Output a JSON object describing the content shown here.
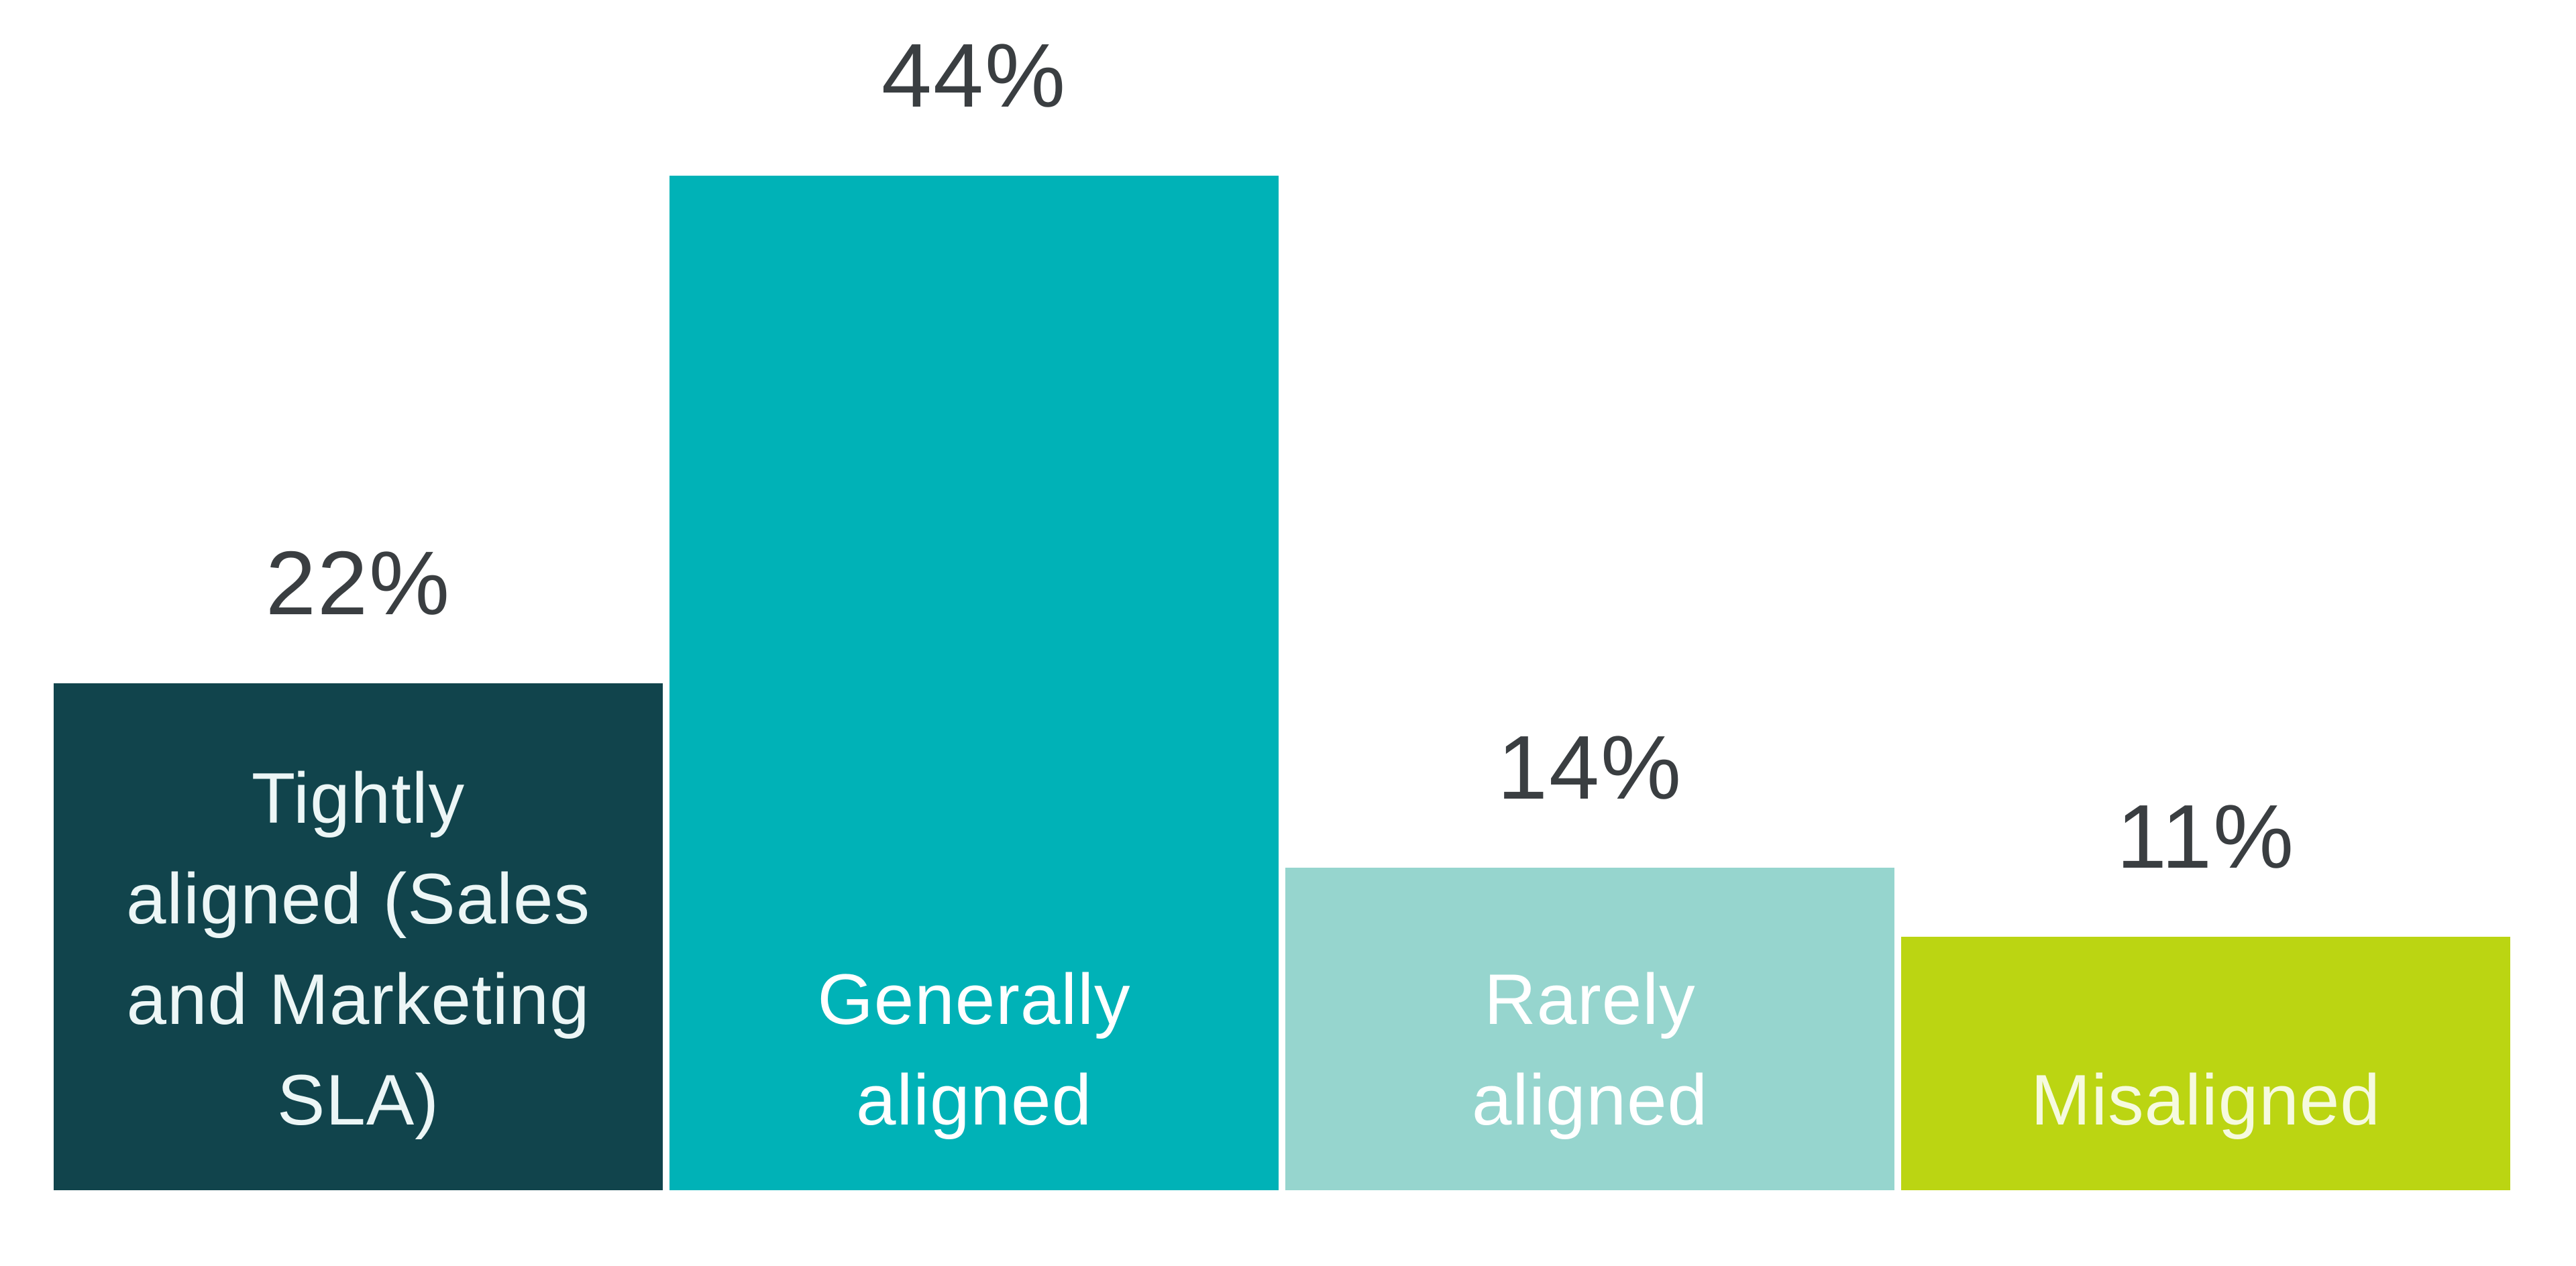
{
  "chart_data": {
    "type": "bar",
    "title": "",
    "xlabel": "",
    "ylabel": "",
    "unit": "%",
    "ylim": [
      0,
      44
    ],
    "grid": false,
    "legend": false,
    "background_color": "#ffffff",
    "value_label_color": "#3a3e41",
    "categories": [
      "Tightly aligned (Sales and Marketing SLA)",
      "Generally aligned",
      "Rarely aligned",
      "Misaligned"
    ],
    "values": [
      22,
      44,
      14,
      11
    ],
    "value_labels": [
      "22%",
      "44%",
      "14%",
      "11%"
    ],
    "bars": [
      {
        "label_lines": [
          "Tightly",
          "aligned (Sales",
          "and Marketing",
          "SLA)"
        ],
        "value": 22,
        "value_label": "22%",
        "color": "#11444c",
        "text_color": "#ecf6f6"
      },
      {
        "label_lines": [
          "Generally",
          "aligned"
        ],
        "value": 44,
        "value_label": "44%",
        "color": "#00b2b7",
        "text_color": "#ffffff"
      },
      {
        "label_lines": [
          "Rarely",
          "aligned"
        ],
        "value": 14,
        "value_label": "14%",
        "color": "#96d5ce",
        "text_color": "#ffffff"
      },
      {
        "label_lines": [
          "Misaligned"
        ],
        "value": 11,
        "value_label": "11%",
        "color": "#bbd512",
        "text_color": "#f6fadf"
      }
    ]
  }
}
